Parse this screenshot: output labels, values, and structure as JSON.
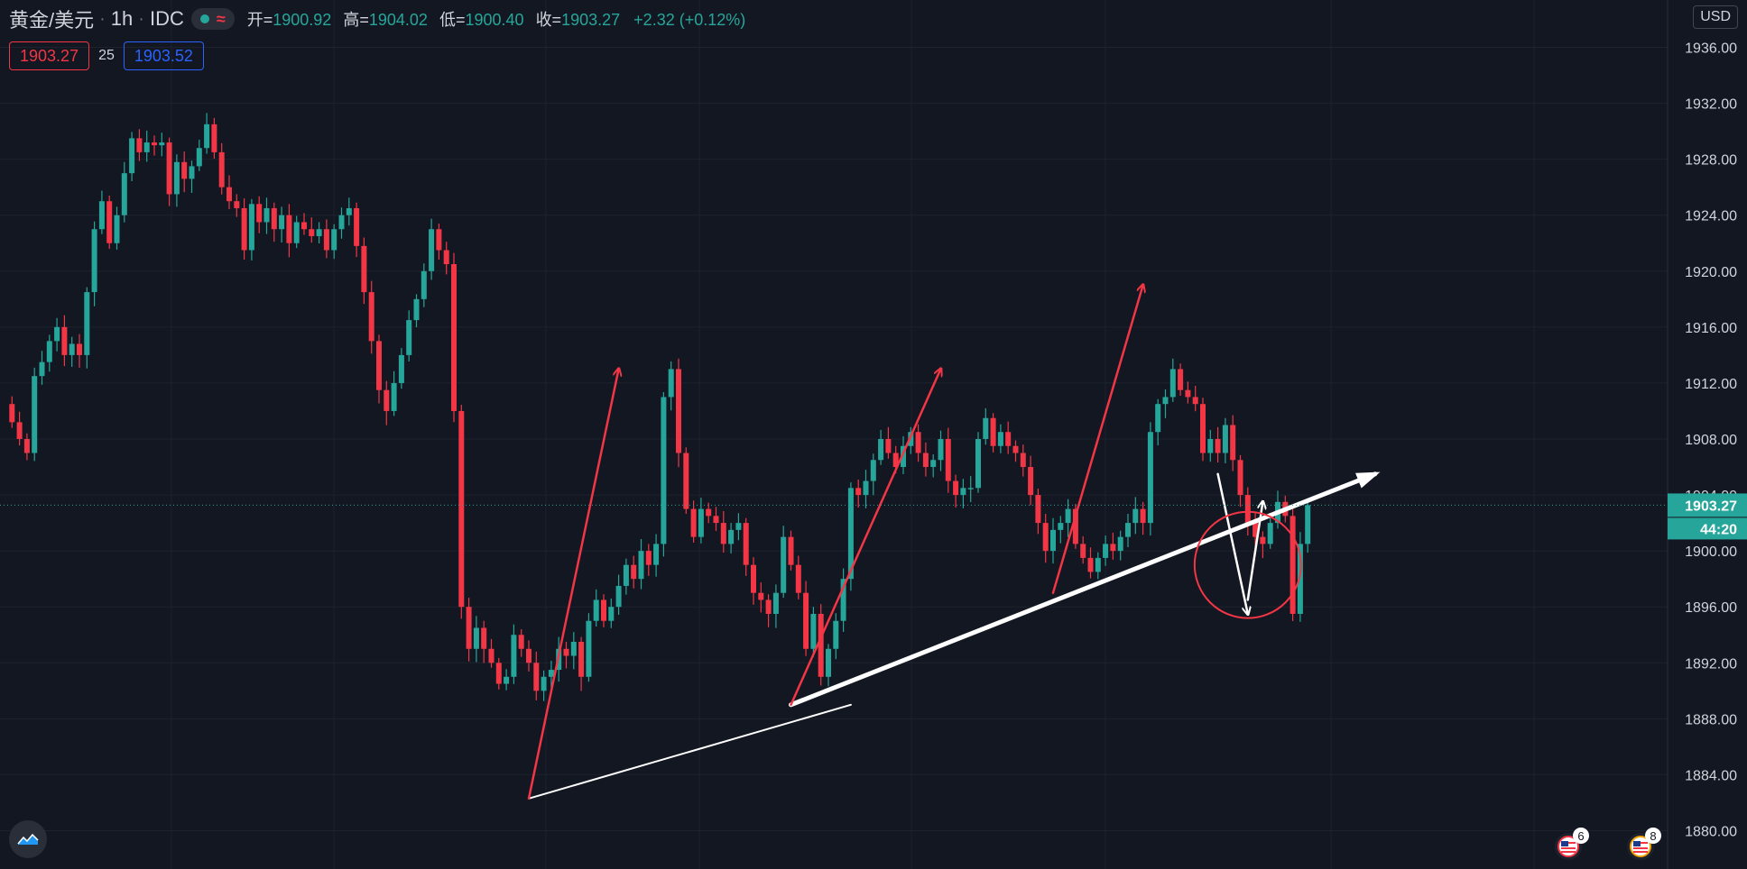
{
  "header": {
    "symbol": "黄金/美元",
    "interval": "1h",
    "source": "IDC",
    "ohlc": {
      "open_label": "开=",
      "open": "1900.92",
      "high_label": "高=",
      "high": "1904.02",
      "low_label": "低=",
      "low": "1900.40",
      "close_label": "收=",
      "close": "1903.27",
      "change": "+2.32 (+0.12%)"
    },
    "sell_price": "1903.27",
    "spread": "25",
    "buy_price": "1903.52"
  },
  "currency_button": "USD",
  "last_price_label": "1903.27",
  "countdown_label": "44:20",
  "calendar_badges": [
    "6",
    "8"
  ],
  "colors": {
    "background": "#131722",
    "up": "#26a69a",
    "down": "#f23645",
    "grid": "#1e222d",
    "text": "#d1d4dc",
    "annotation_red": "#f23645",
    "annotation_white": "#ffffff"
  },
  "chart_data": {
    "type": "candlestick",
    "title": "",
    "xlabel": "",
    "ylabel": "",
    "ylim": [
      1878.0,
      1938.0
    ],
    "y_ticks": [
      "1936.00",
      "1932.00",
      "1928.00",
      "1924.00",
      "1920.00",
      "1916.00",
      "1912.00",
      "1908.00",
      "1904.00",
      "1900.00",
      "1896.00",
      "1892.00",
      "1888.00",
      "1884.00",
      "1880.00"
    ],
    "last_price": 1903.27,
    "grid": true,
    "series": [
      {
        "closes": [
          1910.5,
          1909.2,
          1908.0,
          1907.0,
          1912.5,
          1913.5,
          1915.0,
          1916.0,
          1914.0,
          1914.8,
          1914.0,
          1918.5,
          1923.0,
          1925.0,
          1922.0,
          1924.0,
          1927.0,
          1929.5,
          1928.5,
          1929.2,
          1929.0,
          1929.2,
          1925.5,
          1927.8,
          1926.6,
          1927.5,
          1928.8,
          1930.5,
          1928.5,
          1926.0,
          1925.0,
          1924.5,
          1921.5,
          1924.8,
          1923.5,
          1924.5,
          1923.0,
          1924.0,
          1922.0,
          1923.5,
          1923.0,
          1922.5,
          1923.0,
          1921.5,
          1923.0,
          1924.0,
          1924.5,
          1921.8,
          1918.5,
          1915.0,
          1911.5,
          1910.0,
          1912.0,
          1914.0,
          1916.5,
          1918.0,
          1920.0,
          1923.0,
          1921.5,
          1920.5,
          1910.0,
          1896.0,
          1893.0,
          1894.5,
          1893.0,
          1892.0,
          1890.5,
          1891.0,
          1894.0,
          1893.0,
          1892.0,
          1890.0,
          1891.0,
          1891.5,
          1893.0,
          1892.5,
          1893.5,
          1891.0,
          1895.0,
          1896.5,
          1895.0,
          1896.0,
          1897.5,
          1899.0,
          1898.0,
          1900.0,
          1899.0,
          1900.5,
          1911.0,
          1913.0,
          1907.0,
          1903.0,
          1901.0,
          1903.0,
          1902.5,
          1902.0,
          1900.5,
          1901.5,
          1902.0,
          1899.0,
          1897.0,
          1896.5,
          1895.5,
          1897.0,
          1901.0,
          1899.0,
          1897.0,
          1893.0,
          1895.5,
          1891.0,
          1893.0,
          1895.0,
          1898.0,
          1904.5,
          1904.0,
          1905.0,
          1906.5,
          1908.0,
          1907.0,
          1906.0,
          1907.5,
          1908.5,
          1907.0,
          1906.0,
          1906.5,
          1908.0,
          1905.0,
          1904.0,
          1904.5,
          1904.5,
          1908.0,
          1909.5,
          1907.5,
          1908.5,
          1907.5,
          1907.0,
          1906.0,
          1904.0,
          1902.0,
          1900.0,
          1901.5,
          1902.0,
          1903.0,
          1900.5,
          1899.5,
          1898.5,
          1899.5,
          1900.5,
          1900.0,
          1901.0,
          1902.0,
          1903.0,
          1902.0,
          1908.5,
          1910.5,
          1911.0,
          1913.0,
          1911.5,
          1911.0,
          1910.5,
          1907.0,
          1908.0,
          1907.0,
          1909.0,
          1906.5,
          1904.0,
          1902.0,
          1901.0,
          1900.5,
          1902.0,
          1903.5,
          1902.5,
          1895.5,
          1900.5,
          1903.27
        ]
      }
    ],
    "annotations": [
      {
        "type": "trendline",
        "color": "white",
        "from": [
          70,
          1882.3
        ],
        "to": [
          113,
          1889.0
        ]
      },
      {
        "type": "trendline",
        "color": "white",
        "from": [
          105,
          1889.0
        ],
        "to": [
          183,
          1905.5
        ],
        "arrow": true
      },
      {
        "type": "arrow",
        "color": "red",
        "from": [
          70,
          1882.3
        ],
        "to": [
          82,
          1913.0
        ]
      },
      {
        "type": "arrow",
        "color": "red",
        "from": [
          105,
          1889.0
        ],
        "to": [
          125,
          1913.0
        ]
      },
      {
        "type": "arrow",
        "color": "red",
        "from": [
          140,
          1897.0
        ],
        "to": [
          152,
          1919.0
        ]
      },
      {
        "type": "arrow",
        "color": "white",
        "from": [
          162,
          1905.5
        ],
        "to": [
          166,
          1895.5
        ]
      },
      {
        "type": "arrow",
        "color": "white",
        "from": [
          166,
          1896.5
        ],
        "to": [
          168,
          1903.5
        ]
      },
      {
        "type": "circle",
        "color": "red",
        "center": [
          166,
          1899.0
        ],
        "radius_price": 3.8
      }
    ]
  }
}
